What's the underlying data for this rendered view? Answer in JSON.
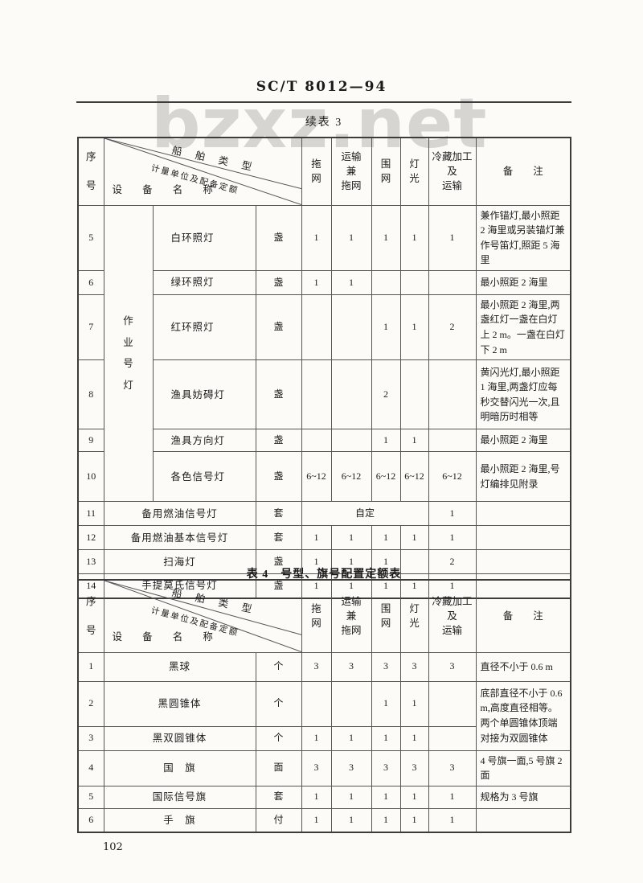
{
  "watermark": "bzxz.net",
  "header": {
    "standard_number": "SC/T 8012—94"
  },
  "footer": {
    "page_number": "102"
  },
  "table_header": {
    "seq_display": "序\n号",
    "diagonal": {
      "top": "船舶类型",
      "middle": "计量单位及配备定额",
      "bottom": "设 备 名 称"
    },
    "columns_display": [
      "拖\n网",
      "运输\n兼\n拖网",
      "围\n网",
      "灯\n光",
      "冷藏加工\n及\n运输",
      "备　　注"
    ]
  },
  "table3": {
    "title": "续表 3",
    "rows": [
      {
        "seq": "5",
        "group": "作业号灯",
        "group_rows": 6,
        "name": "白环照灯",
        "name_span": 1,
        "unit": "盏",
        "values": [
          "1",
          "1",
          "1",
          "1",
          "1"
        ],
        "remark": "兼作锚灯,最小照距 2 海里或另装锚灯兼作号笛灯,照距 5 海里"
      },
      {
        "seq": "6",
        "name": "绿环照灯",
        "name_span": 1,
        "unit": "盏",
        "values": [
          "1",
          "1",
          "",
          "",
          ""
        ],
        "remark": "最小照距 2 海里"
      },
      {
        "seq": "7",
        "name": "红环照灯",
        "name_span": 1,
        "unit": "盏",
        "values": [
          "",
          "",
          "1",
          "1",
          "2"
        ],
        "remark": "最小照距 2 海里,两盏红灯一盏在白灯上 2 m。一盏在白灯下 2 m"
      },
      {
        "seq": "8",
        "name": "渔具妨碍灯",
        "name_span": 1,
        "unit": "盏",
        "values": [
          "",
          "",
          "2",
          "",
          ""
        ],
        "remark": "黄闪光灯,最小照距 1 海里,两盏灯应每秒交替闪光一次,且明暗历时相等"
      },
      {
        "seq": "9",
        "name": "渔具方向灯",
        "name_span": 1,
        "unit": "盏",
        "values": [
          "",
          "",
          "1",
          "1",
          ""
        ],
        "remark": "最小照距 2 海里"
      },
      {
        "seq": "10",
        "name": "各色信号灯",
        "name_span": 1,
        "unit": "盏",
        "values": [
          "6~12",
          "6~12",
          "6~12",
          "6~12",
          "6~12"
        ],
        "remark": "最小照距 2 海里,号灯编排见附录"
      },
      {
        "seq": "11",
        "name": "备用燃油信号灯",
        "name_span": 2,
        "unit": "套",
        "values": [
          {
            "text": "自定",
            "colspan": 4
          },
          "1"
        ],
        "remark": ""
      },
      {
        "seq": "12",
        "name": "备用燃油基本信号灯",
        "name_span": 2,
        "unit": "套",
        "values": [
          "1",
          "1",
          "1",
          "1",
          "1"
        ],
        "remark": ""
      },
      {
        "seq": "13",
        "name": "扫海灯",
        "name_span": 2,
        "unit": "盏",
        "values": [
          "1",
          "1",
          "1",
          "",
          "2"
        ],
        "remark": ""
      },
      {
        "seq": "14",
        "name": "手提莫氏信号灯",
        "name_span": 2,
        "unit": "盏",
        "values": [
          "1",
          "1",
          "1",
          "1",
          "1"
        ],
        "remark": ""
      }
    ]
  },
  "table4": {
    "title": "表 4　号型、旗号配置定额表",
    "rows": [
      {
        "seq": "1",
        "name": "黑球",
        "name_span": 2,
        "unit": "个",
        "values": [
          "3",
          "3",
          "3",
          "3",
          "3"
        ],
        "remark": "直径不小于 0.6 m"
      },
      {
        "seq": "2",
        "name": "黑圆锥体",
        "name_span": 2,
        "unit": "个",
        "values": [
          "",
          "",
          "1",
          "1",
          ""
        ],
        "remark": {
          "text": "底部直径不小于 0.6 m,高度直径相等。两个单圆锥体顶端对接为双圆锥体",
          "rowspan": 2
        }
      },
      {
        "seq": "3",
        "name": "黑双圆锥体",
        "name_span": 2,
        "unit": "个",
        "values": [
          "1",
          "1",
          "1",
          "1",
          ""
        ],
        "remark": null
      },
      {
        "seq": "4",
        "name": "国　旗",
        "name_span": 2,
        "unit": "面",
        "values": [
          "3",
          "3",
          "3",
          "3",
          "3"
        ],
        "remark": "4 号旗一面,5 号旗 2 面"
      },
      {
        "seq": "5",
        "name": "国际信号旗",
        "name_span": 2,
        "unit": "套",
        "values": [
          "1",
          "1",
          "1",
          "1",
          "1"
        ],
        "remark": "规格为 3 号旗"
      },
      {
        "seq": "6",
        "name": "手　旗",
        "name_span": 2,
        "unit": "付",
        "values": [
          "1",
          "1",
          "1",
          "1",
          "1"
        ],
        "remark": ""
      }
    ]
  }
}
